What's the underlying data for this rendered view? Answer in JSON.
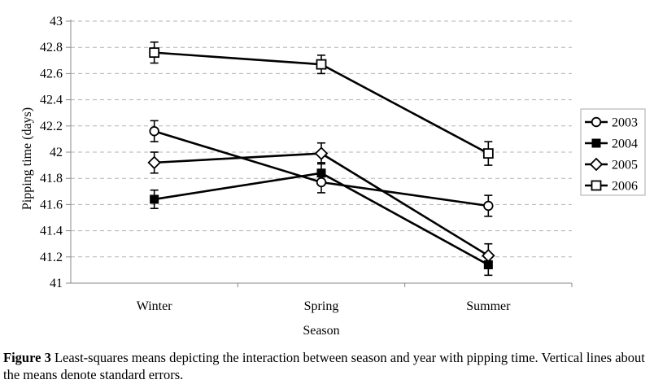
{
  "figure": {
    "caption_bold": "Figure 3",
    "caption_rest": " Least-squares means depicting the interaction between season and year with pipping time. Vertical lines about the means denote standard errors."
  },
  "chart_data": {
    "type": "line",
    "title": "",
    "xlabel": "Season",
    "ylabel": "Pipping time (days)",
    "categories": [
      "Winter",
      "Spring",
      "Summer"
    ],
    "ylim": [
      41,
      43
    ],
    "ytick_step": 0.2,
    "ytick_labels": [
      "41",
      "41.2",
      "41.4",
      "41.6",
      "41.8",
      "42",
      "42.2",
      "42.4",
      "42.6",
      "42.8",
      "43"
    ],
    "grid": "horizontal-dashed",
    "legend_position": "right",
    "error_bars": "standard errors, approx ±0.08 days",
    "series": [
      {
        "name": "2003",
        "marker": "circle-open",
        "values": [
          42.16,
          41.77,
          41.59
        ],
        "se": [
          0.08,
          0.08,
          0.08
        ]
      },
      {
        "name": "2004",
        "marker": "square-filled",
        "values": [
          41.64,
          41.84,
          41.14
        ],
        "se": [
          0.07,
          0.08,
          0.08
        ]
      },
      {
        "name": "2005",
        "marker": "diamond-open",
        "values": [
          41.92,
          41.99,
          41.21
        ],
        "se": [
          0.08,
          0.08,
          0.09
        ]
      },
      {
        "name": "2006",
        "marker": "square-open",
        "values": [
          42.76,
          42.67,
          41.99
        ],
        "se": [
          0.08,
          0.07,
          0.09
        ]
      }
    ],
    "colors": {
      "line": "#000000",
      "grid": "#b3b3b3",
      "axis": "#888888",
      "legend_border": "#aaaaaa"
    }
  }
}
